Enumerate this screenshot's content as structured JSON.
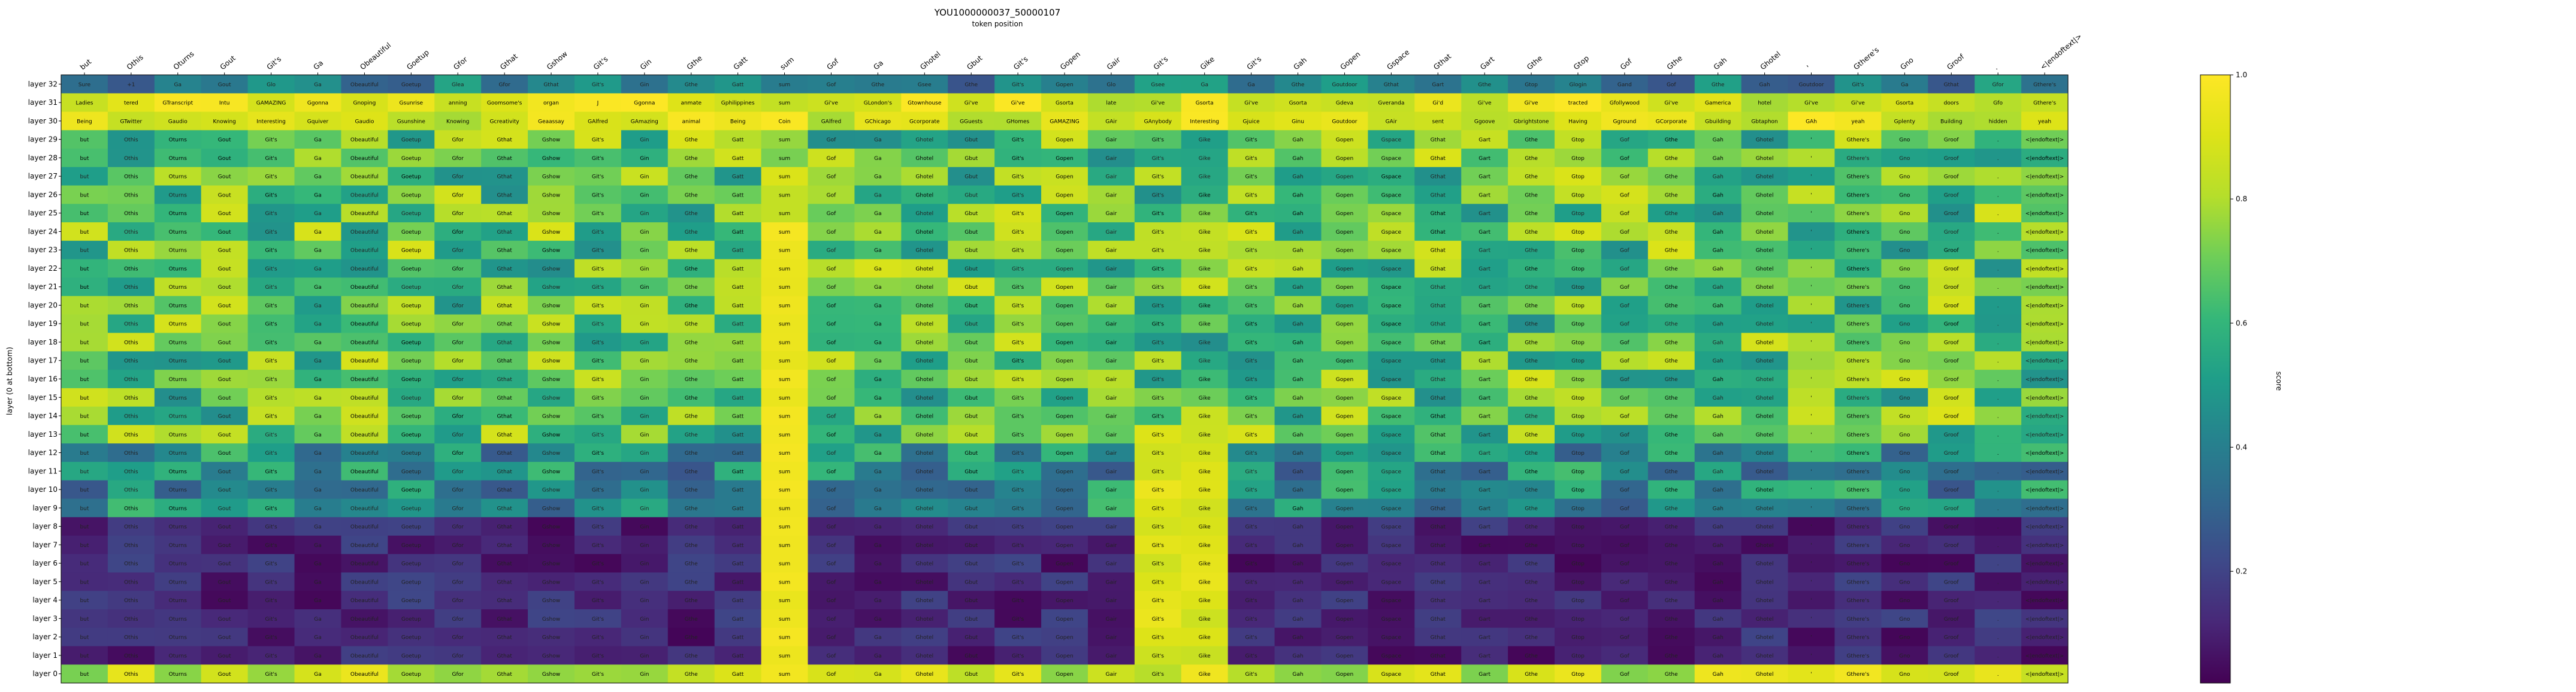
{
  "chart_data": {
    "type": "heatmap",
    "title": "YOU1000000037_50000107",
    "subtitle": "token position",
    "ylabel": "layer (0 at bottom)",
    "colorbar_label": "score",
    "colorbar_ticks": [
      "0.2",
      "0.4",
      "0.6",
      "0.8",
      "1.0"
    ],
    "colorbar_tick_values": [
      0.2,
      0.4,
      0.6,
      0.8,
      1.0
    ],
    "vmin": 0.02,
    "vmax": 1.0,
    "x_tokens": [
      "but",
      "Othis",
      "Oturns",
      "Gout",
      "Git's",
      "Ga",
      "Obeautiful",
      "Goetup",
      "Gfor",
      "Gthat",
      "Gshow",
      "Git's",
      "Gin",
      "Gthe",
      "Gatt",
      "sum",
      "Gof",
      "Ga",
      "Ghotel",
      "Gbut",
      "Git's",
      "Gopen",
      "Gair",
      "Git's",
      "Gike",
      "Git's",
      "Gah",
      "Gopen",
      "Gspace",
      "Gthat",
      "Gart",
      "Gthe",
      "Gtop",
      "Gof",
      "Gthe",
      "Gah",
      "Ghotel",
      "'",
      "Gthere's",
      "Gno",
      "Groof",
      ".",
      "<|endoftext|>"
    ],
    "y_labels": [
      "layer 32",
      "layer 31",
      "layer 30",
      "layer 29",
      "layer 28",
      "layer 27",
      "layer 26",
      "layer 25",
      "layer 24",
      "layer 23",
      "layer 22",
      "layer 21",
      "layer 20",
      "layer 19",
      "layer 18",
      "layer 17",
      "layer 16",
      "layer 15",
      "layer 14",
      "layer 13",
      "layer 12",
      "layer 11",
      "layer 10",
      "layer 9",
      "layer 8",
      "layer 7",
      "layer 6",
      "layer 5",
      "layer 4",
      "layer 3",
      "layer 2",
      "layer 1",
      "layer 0"
    ],
    "row_pattern_words": {
      "layer 32": [
        "Sure",
        "+1",
        "Ga",
        "Gout",
        "Glo",
        "Ga",
        "",
        "",
        "Glea",
        "Gfor",
        "Gthat",
        "",
        "",
        "",
        "Gatt",
        "sum",
        "Gof",
        "Gthe",
        "Gsee",
        "Gthe",
        "Git's",
        "Gopen",
        "Glo",
        "Gsee",
        "Ga",
        "Ga",
        "Gthe",
        "Goutdoor",
        "Gthat",
        "Gart",
        "Gthe",
        "Gtop",
        "Glogin",
        "Gand",
        "Gof",
        "Gthe",
        "Gah",
        "Goutdoor",
        "Git's",
        "Ga",
        "Gthat",
        "Gfor",
        "Gthere's"
      ],
      "layer 31": [
        "Ladies",
        "tered",
        "GTranscript",
        "Intu",
        "GAMAZING",
        "Ggonna",
        "Gnoping",
        "Gsunrise",
        "anning",
        "Goomsome's",
        "organ",
        "J",
        "Ggonna",
        "anmate",
        "Gphilippines",
        "sum",
        "Gi've",
        "GLondon's",
        "Gtownhouse",
        "Gi've",
        "Gi've",
        "Gsorta",
        "late",
        "Gi've",
        "Gsorta",
        "Gi've",
        "Gsorta",
        "Gdeva",
        "Gveranda",
        "Gi'd",
        "Gi've",
        "Gi've",
        "tracted",
        "Gfollywood",
        "Gi've",
        "Gamerica",
        "hotel",
        "Gi've",
        "Gi've",
        "Gsorta",
        "doors",
        "Gfo",
        "Gthere's"
      ],
      "layer 30": [
        "Being",
        "GTwitter",
        "Gaudio",
        "Knowing",
        "Interesting",
        "Gquiver",
        "Gaudio",
        "Gsunshine",
        "Knowing",
        "Gcreativity",
        "Geaassay",
        "GAlfred",
        "GAmazing",
        "animal",
        "Being",
        "Coin",
        "GAlfred",
        "GChicago",
        "Gcorporate",
        "GGuests",
        "GHomes",
        "GAMAZING",
        "GAir",
        "GAnybody",
        "Interesting",
        "Gjuice",
        "Ginu",
        "Goutdoor",
        "GAir",
        "sent",
        "Ggoove",
        "Gbrightstone",
        "Having",
        "Gground",
        "GCorporate",
        "Gbuilding",
        "Gbtaphon",
        "GAh",
        "yeah",
        "Gplenty",
        "Building",
        "hidden",
        "yeah"
      ]
    }
  }
}
